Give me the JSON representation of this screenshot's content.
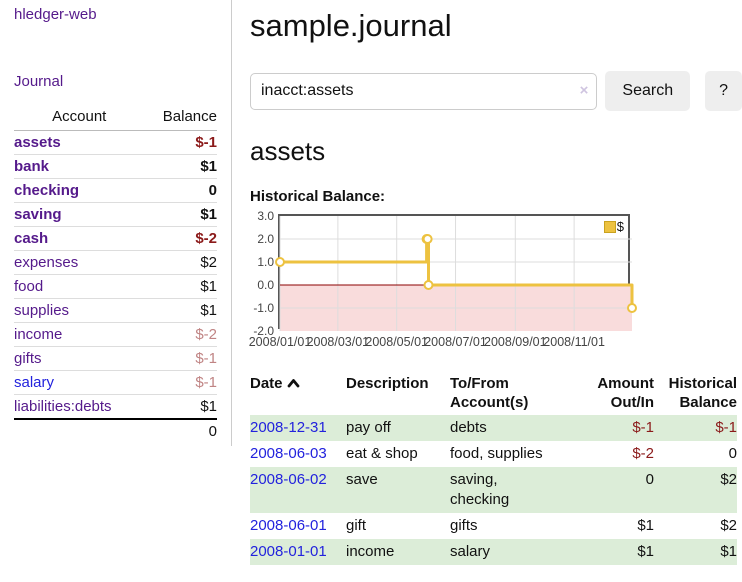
{
  "app_title": "hledger-web",
  "sidebar": {
    "journal_link": "Journal",
    "accounts_table": {
      "account_header": "Account",
      "balance_header": "Balance",
      "rows": [
        {
          "name": "assets",
          "balance": "$-1",
          "level": 0,
          "bold": true,
          "balance_style": "neg-strong",
          "link_style": "purple"
        },
        {
          "name": "bank",
          "balance": "$1",
          "level": 1,
          "bold": true,
          "balance_style": "pos",
          "link_style": "purple"
        },
        {
          "name": "checking",
          "balance": "0",
          "level": 2,
          "bold": true,
          "balance_style": "pos",
          "link_style": "purple"
        },
        {
          "name": "saving",
          "balance": "$1",
          "level": 2,
          "bold": true,
          "balance_style": "pos",
          "link_style": "purple"
        },
        {
          "name": "cash",
          "balance": "$-2",
          "level": 1,
          "bold": true,
          "balance_style": "neg-strong",
          "link_style": "purple"
        },
        {
          "name": "expenses",
          "balance": "$2",
          "level": 0,
          "bold": false,
          "balance_style": "pos",
          "link_style": "purple"
        },
        {
          "name": "food",
          "balance": "$1",
          "level": 1,
          "bold": false,
          "balance_style": "pos",
          "link_style": "purple"
        },
        {
          "name": "supplies",
          "balance": "$1",
          "level": 1,
          "bold": false,
          "balance_style": "pos",
          "link_style": "purple"
        },
        {
          "name": "income",
          "balance": "$-2",
          "level": 0,
          "bold": false,
          "balance_style": "neg-muted",
          "link_style": "purple"
        },
        {
          "name": "gifts",
          "balance": "$-1",
          "level": 1,
          "bold": false,
          "balance_style": "neg-muted",
          "link_style": "purple"
        },
        {
          "name": "salary",
          "balance": "$-1",
          "level": 1,
          "bold": false,
          "balance_style": "neg-muted",
          "link_style": "blue"
        },
        {
          "name": "liabilities:debts",
          "balance": "$1",
          "level": 0,
          "bold": false,
          "balance_style": "pos",
          "link_style": "purple"
        }
      ],
      "total": "0"
    }
  },
  "main": {
    "title": "sample.journal",
    "search": {
      "value": "inacct:assets",
      "clear_icon": "×",
      "search_button": "Search",
      "help_button": "?"
    },
    "account_heading": "assets",
    "section_heading": "Historical Balance:"
  },
  "chart_data": {
    "type": "line",
    "step": true,
    "series": [
      {
        "name": "$",
        "color": "#edc240",
        "points": [
          [
            "2008-01-01",
            1
          ],
          [
            "2008-06-01",
            2
          ],
          [
            "2008-06-02",
            2
          ],
          [
            "2008-06-03",
            0
          ],
          [
            "2008-12-31",
            -1
          ]
        ]
      }
    ],
    "xlim": [
      "2008-01-01",
      "2008-12-31"
    ],
    "ylim": [
      -2,
      3
    ],
    "yticks": [
      -2,
      -1,
      0,
      1,
      2,
      3
    ],
    "ytick_labels": [
      "-2.0",
      "-1.0",
      "0.0",
      "1.0",
      "2.0",
      "3.0"
    ],
    "xticks": [
      "2008-01-01",
      "2008-03-01",
      "2008-05-01",
      "2008-07-01",
      "2008-09-01",
      "2008-11-01"
    ],
    "xtick_labels": [
      "2008/01/01",
      "2008/03/01",
      "2008/05/01",
      "2008/07/01",
      "2008/09/01",
      "2008/11/01"
    ],
    "legend": "$",
    "legend_position": "top-right",
    "grid": true,
    "gridline_color": "#dddddd",
    "zero_line_color": "#8b0000",
    "negative_region_color": "#f9dcdc",
    "border_color": "#555555"
  },
  "register": {
    "headers": [
      "Date",
      "Description",
      "To/From Account(s)",
      "Amount Out/In",
      "Historical Balance"
    ],
    "sort_column": "Date",
    "sort_direction": "ascending",
    "rows": [
      {
        "date": "2008-12-31",
        "description": "pay off",
        "accounts": "debts",
        "amount": "$-1",
        "balance": "$-1",
        "amount_negative": true,
        "balance_negative": true
      },
      {
        "date": "2008-06-03",
        "description": "eat & shop",
        "accounts": "food, supplies",
        "amount": "$-2",
        "balance": "0",
        "amount_negative": true,
        "balance_negative": false
      },
      {
        "date": "2008-06-02",
        "description": "save",
        "accounts": "saving, checking",
        "amount": "0",
        "balance": "$2",
        "amount_negative": false,
        "balance_negative": false
      },
      {
        "date": "2008-06-01",
        "description": "gift",
        "accounts": "gifts",
        "amount": "$1",
        "balance": "$2",
        "amount_negative": false,
        "balance_negative": false
      },
      {
        "date": "2008-01-01",
        "description": "income",
        "accounts": "salary",
        "amount": "$1",
        "balance": "$1",
        "amount_negative": false,
        "balance_negative": false
      }
    ]
  },
  "colors": {
    "link_purple": "#551a8b",
    "link_blue": "#2222dd",
    "negative_strong": "#8b1a1a",
    "negative_muted": "#c08484",
    "stripe_green": "#dcedd8",
    "series_gold": "#edc240",
    "button_bg": "#eeeeee"
  }
}
